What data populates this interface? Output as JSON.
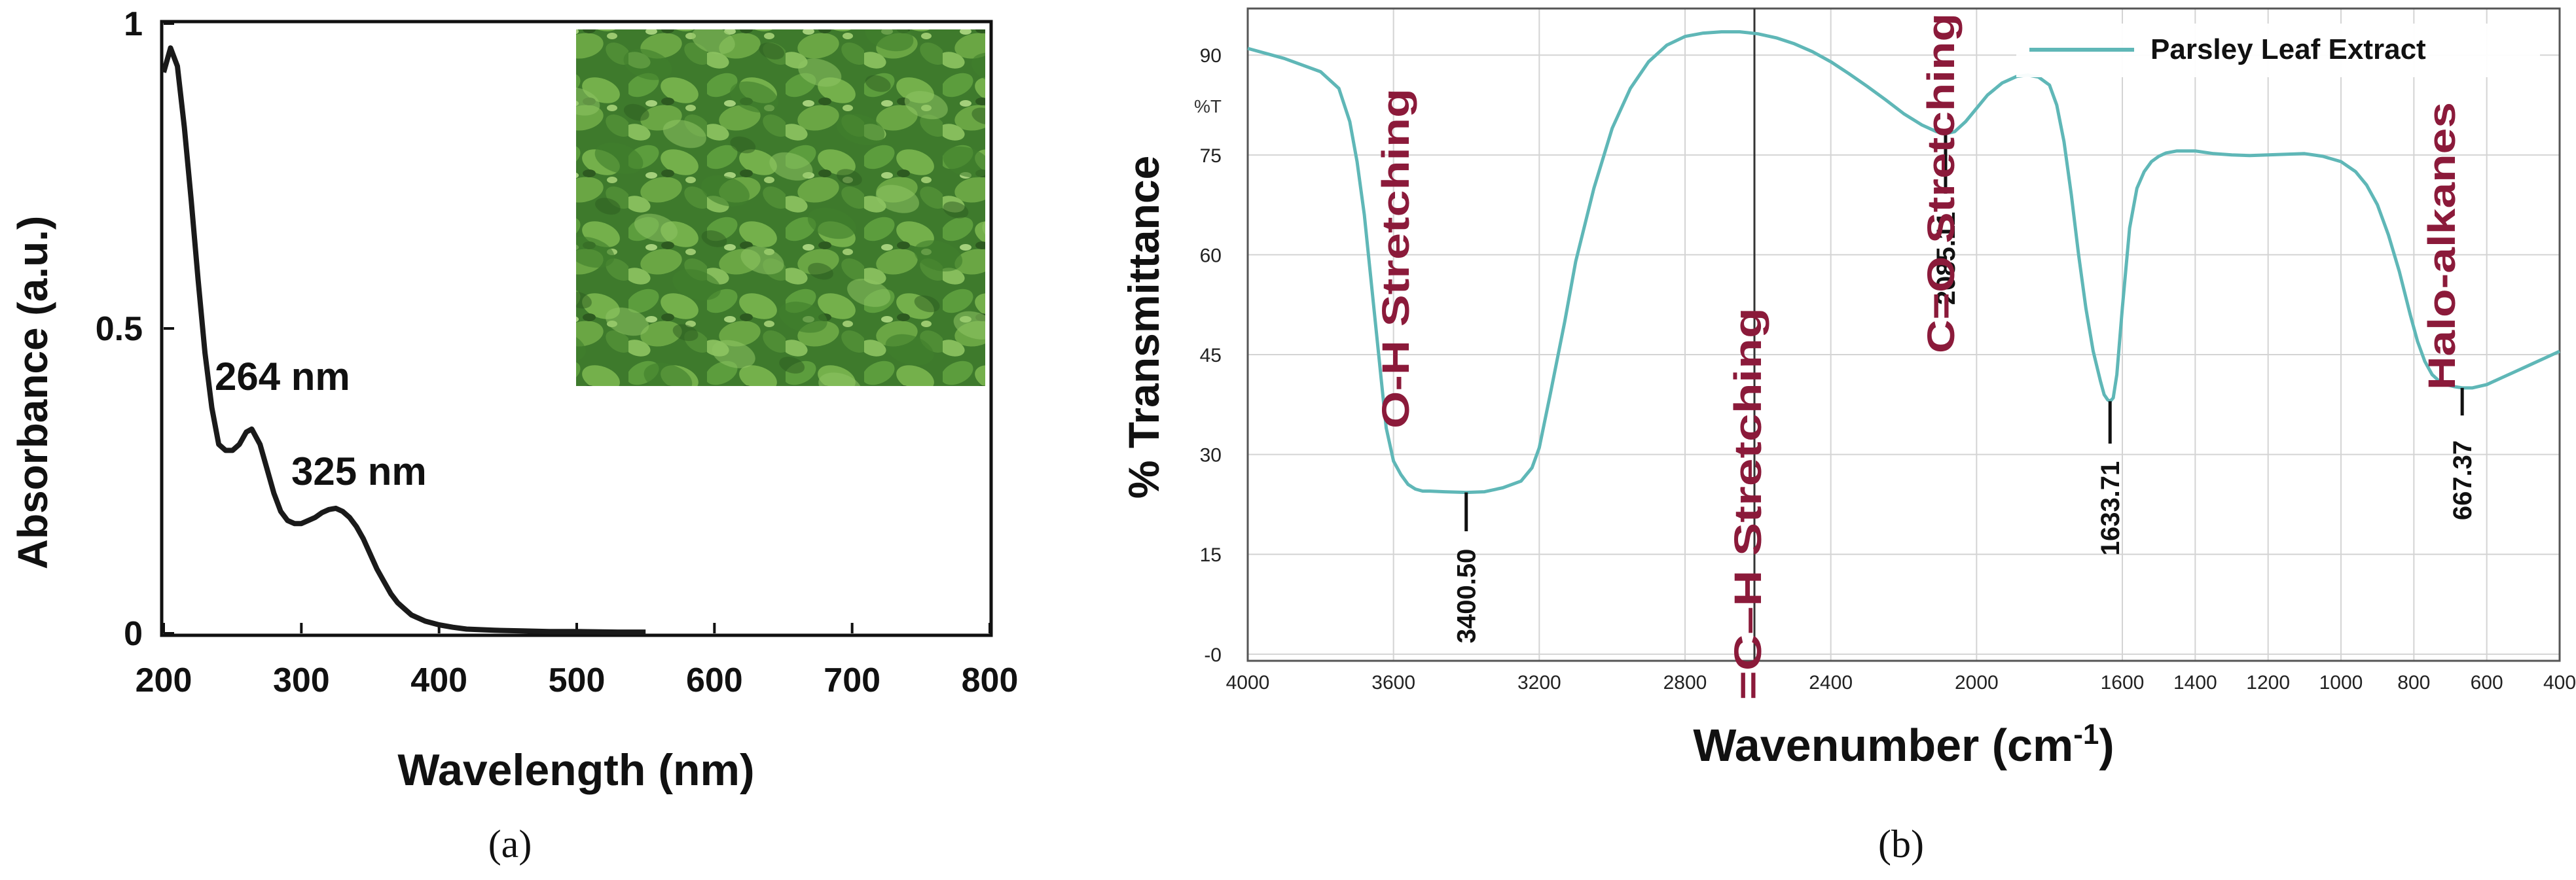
{
  "panel_labels": [
    "(a)",
    "(b)"
  ],
  "chart_data": [
    {
      "type": "line",
      "xlabel": "Wavelength (nm)",
      "ylabel": "Absorbance (a.u.)",
      "xlim": [
        200,
        800
      ],
      "ylim": [
        0,
        1
      ],
      "x_ticks": [
        "200",
        "300",
        "400",
        "500",
        "600",
        "700",
        "800"
      ],
      "y_ticks": [
        "0",
        "0.5",
        "1"
      ],
      "grid": false,
      "annotations": [
        "264 nm",
        "325 nm"
      ],
      "inset_photo": "parsley-leaves-photo",
      "series": [
        {
          "color": "#1a1a1a",
          "x": [
            200,
            205,
            210,
            215,
            220,
            225,
            230,
            235,
            240,
            245,
            250,
            255,
            260,
            264,
            270,
            275,
            280,
            285,
            290,
            295,
            300,
            305,
            310,
            315,
            320,
            325,
            330,
            335,
            340,
            345,
            350,
            355,
            360,
            365,
            370,
            375,
            380,
            390,
            400,
            410,
            420,
            440,
            460,
            480,
            500,
            530,
            550
          ],
          "y": [
            0.92,
            0.96,
            0.93,
            0.83,
            0.71,
            0.58,
            0.46,
            0.37,
            0.31,
            0.3,
            0.3,
            0.31,
            0.33,
            0.335,
            0.31,
            0.27,
            0.23,
            0.2,
            0.185,
            0.18,
            0.18,
            0.185,
            0.19,
            0.198,
            0.203,
            0.205,
            0.2,
            0.19,
            0.175,
            0.155,
            0.13,
            0.105,
            0.085,
            0.065,
            0.05,
            0.04,
            0.03,
            0.02,
            0.014,
            0.01,
            0.007,
            0.005,
            0.004,
            0.003,
            0.003,
            0.002,
            0.002
          ]
        }
      ]
    },
    {
      "type": "line",
      "xlabel": "Wavenumber (cm⁻¹)",
      "ylabel": "% Transmittance",
      "y_unit_marker": "%T",
      "xlim": [
        4000,
        400
      ],
      "ylim": [
        -1,
        97
      ],
      "x_ticks": [
        "4000",
        "3600",
        "3200",
        "2800",
        "2400",
        "2000",
        "1600",
        "1400",
        "1200",
        "1000",
        "800",
        "600",
        "400"
      ],
      "y_ticks": [
        "90",
        "75",
        "60",
        "45",
        "30",
        "15",
        "-0"
      ],
      "grid": true,
      "legend_position": "top-right",
      "series": [
        {
          "name": "Parsley Leaf Extract",
          "color": "#5fb7b7",
          "x": [
            4000,
            3900,
            3800,
            3750,
            3720,
            3700,
            3680,
            3650,
            3620,
            3600,
            3580,
            3560,
            3540,
            3520,
            3500,
            3460,
            3400,
            3350,
            3300,
            3250,
            3220,
            3200,
            3170,
            3130,
            3100,
            3050,
            3000,
            2950,
            2900,
            2850,
            2800,
            2750,
            2700,
            2650,
            2600,
            2550,
            2500,
            2450,
            2400,
            2350,
            2300,
            2250,
            2200,
            2150,
            2110,
            2085,
            2060,
            2030,
            2000,
            1970,
            1930,
            1890,
            1860,
            1830,
            1800,
            1780,
            1760,
            1740,
            1720,
            1700,
            1680,
            1660,
            1650,
            1640,
            1633,
            1625,
            1615,
            1600,
            1580,
            1560,
            1540,
            1520,
            1500,
            1480,
            1450,
            1400,
            1350,
            1300,
            1250,
            1200,
            1150,
            1100,
            1050,
            1000,
            960,
            930,
            900,
            870,
            840,
            810,
            790,
            770,
            750,
            730,
            710,
            690,
            667,
            640,
            600,
            560,
            520,
            480,
            440,
            400
          ],
          "y": [
            91,
            89.5,
            87.5,
            85,
            80,
            74,
            66,
            50,
            34,
            29,
            27,
            25.5,
            24.8,
            24.5,
            24.5,
            24.4,
            24.3,
            24.4,
            25,
            26,
            28,
            31,
            39,
            50,
            59,
            70,
            79,
            85,
            89,
            91.5,
            92.8,
            93.3,
            93.5,
            93.5,
            93.2,
            92.6,
            91.7,
            90.5,
            89,
            87.2,
            85.3,
            83.3,
            81.2,
            79.5,
            78.5,
            78.2,
            78.5,
            80,
            82,
            84,
            85.8,
            86.8,
            87,
            86.7,
            85.5,
            82.5,
            77,
            69,
            60,
            52,
            45.5,
            41,
            39,
            38.2,
            38,
            38.5,
            42,
            52,
            64,
            70,
            72.5,
            74,
            74.8,
            75.3,
            75.6,
            75.6,
            75.2,
            75,
            74.9,
            75,
            75.1,
            75.2,
            74.8,
            74,
            72.5,
            70.5,
            67.5,
            63,
            57.5,
            51,
            47,
            44,
            42,
            41,
            40.5,
            40.2,
            40,
            40,
            40.5,
            41.5,
            42.5,
            43.5,
            44.5,
            45.5
          ]
        }
      ],
      "annotations": [
        {
          "label": "O-H Stretching",
          "wavenumber": "3400.50",
          "x": 3400.5,
          "y": 24.3,
          "text_color": "#8b1a3a"
        },
        {
          "label": "=C–H Stretching",
          "wavenumber": "2085.11",
          "x": 2085.11,
          "y": 78.2,
          "text_color": "#8b1a3a"
        },
        {
          "label": "C=O Stretching",
          "wavenumber": "1633.71",
          "x": 1633.71,
          "y": 38,
          "text_color": "#8b1a3a"
        },
        {
          "label": "Halo-alkanes",
          "wavenumber": "667.37",
          "x": 667.37,
          "y": 40,
          "text_color": "#8b1a3a"
        }
      ]
    }
  ]
}
